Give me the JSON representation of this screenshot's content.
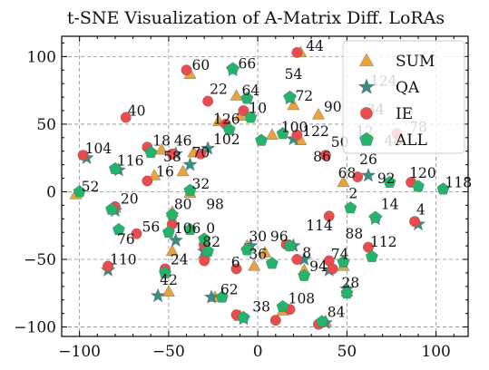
{
  "chart_data": {
    "type": "scatter",
    "title": "t-SNE Visualization of A-Matrix Diff. LoRAs",
    "xlim": [
      -110,
      118
    ],
    "ylim": [
      -107,
      115
    ],
    "xticks": [
      -100,
      -50,
      0,
      50,
      100
    ],
    "yticks": [
      -100,
      -50,
      0,
      50,
      100
    ],
    "xtick_labels": [
      "−100",
      "−50",
      "0",
      "50",
      "100"
    ],
    "ytick_labels": [
      "−100",
      "−50",
      "0",
      "50",
      "100"
    ],
    "grid": true,
    "legend_position": "top-right",
    "series": [
      {
        "name": "SUM",
        "marker": "triangle",
        "color": "#E8A33A",
        "points": [
          [
            24,
            103
          ],
          [
            -38,
            87
          ],
          [
            -12,
            71
          ],
          [
            20,
            64
          ],
          [
            34,
            57
          ],
          [
            -10,
            56
          ],
          [
            -22,
            52
          ],
          [
            8,
            42
          ],
          [
            24,
            38
          ],
          [
            -54,
            31
          ],
          [
            -36,
            29
          ],
          [
            -42,
            15
          ],
          [
            -58,
            12
          ],
          [
            48,
            7
          ],
          [
            -38,
            -1
          ],
          [
            -48,
            -15
          ],
          [
            -30,
            -46
          ],
          [
            -48,
            -44
          ],
          [
            -6,
            -40
          ],
          [
            -2,
            -55
          ],
          [
            26,
            -58
          ],
          [
            48,
            -55
          ],
          [
            -50,
            -74
          ],
          [
            -24,
            -78
          ],
          [
            50,
            -74
          ],
          [
            -10,
            -92
          ],
          [
            38,
            -96
          ],
          [
            14,
            -88
          ],
          [
            -102,
            -2
          ],
          [
            -80,
            -12
          ],
          [
            4,
            -45
          ],
          [
            -30,
            -36
          ]
        ]
      },
      {
        "name": "QA",
        "marker": "star",
        "color": "#3A8C86",
        "points": [
          [
            -14,
            90
          ],
          [
            18,
            69
          ],
          [
            -28,
            32
          ],
          [
            -46,
            28
          ],
          [
            20,
            39
          ],
          [
            -78,
            16
          ],
          [
            -96,
            25
          ],
          [
            -38,
            20
          ],
          [
            -80,
            -14
          ],
          [
            -46,
            -36
          ],
          [
            -4,
            -40
          ],
          [
            20,
            -40
          ],
          [
            -84,
            -58
          ],
          [
            26,
            -50
          ],
          [
            -56,
            -77
          ],
          [
            -26,
            -78
          ],
          [
            -8,
            -94
          ],
          [
            38,
            -97
          ],
          [
            50,
            -72
          ],
          [
            66,
            -20
          ],
          [
            90,
            -24
          ],
          [
            40,
            -58
          ],
          [
            62,
            12
          ],
          [
            -30,
            -44
          ]
        ]
      },
      {
        "name": "IE",
        "marker": "circle",
        "color": "#E94B4E",
        "points": [
          [
            -40,
            90
          ],
          [
            22,
            103
          ],
          [
            -28,
            67
          ],
          [
            -74,
            55
          ],
          [
            -18,
            50
          ],
          [
            -8,
            60
          ],
          [
            22,
            42
          ],
          [
            -62,
            33
          ],
          [
            -98,
            27
          ],
          [
            -48,
            28
          ],
          [
            -32,
            28
          ],
          [
            -62,
            8
          ],
          [
            -80,
            -11
          ],
          [
            -68,
            -31
          ],
          [
            -48,
            -24
          ],
          [
            -84,
            -55
          ],
          [
            -52,
            -57
          ],
          [
            -30,
            -40
          ],
          [
            -12,
            -57
          ],
          [
            16,
            -39
          ],
          [
            22,
            -50
          ],
          [
            40,
            -51
          ],
          [
            40,
            -18
          ],
          [
            62,
            -41
          ],
          [
            88,
            -22
          ],
          [
            18,
            -87
          ],
          [
            34,
            -98
          ],
          [
            -12,
            -91
          ],
          [
            38,
            27
          ],
          [
            56,
            11
          ],
          [
            86,
            7
          ],
          [
            104,
            2
          ],
          [
            42,
            -57
          ],
          [
            -30,
            -51
          ],
          [
            60,
            59
          ],
          [
            78,
            43
          ],
          [
            10,
            -95
          ]
        ]
      },
      {
        "name": "ALL",
        "marker": "pentagon",
        "color": "#23B36A",
        "points": [
          [
            -14,
            91
          ],
          [
            -6,
            69
          ],
          [
            18,
            70
          ],
          [
            -4,
            55
          ],
          [
            -16,
            46
          ],
          [
            14,
            43
          ],
          [
            2,
            38
          ],
          [
            -60,
            29
          ],
          [
            -80,
            17
          ],
          [
            -100,
            0
          ],
          [
            -38,
            1
          ],
          [
            -48,
            -17
          ],
          [
            -78,
            -28
          ],
          [
            -50,
            -30
          ],
          [
            -38,
            -28
          ],
          [
            -28,
            -44
          ],
          [
            -6,
            -43
          ],
          [
            18,
            -40
          ],
          [
            8,
            -53
          ],
          [
            26,
            -62
          ],
          [
            48,
            -52
          ],
          [
            64,
            -48
          ],
          [
            52,
            -12
          ],
          [
            66,
            -19
          ],
          [
            74,
            7
          ],
          [
            90,
            4
          ],
          [
            104,
            2
          ],
          [
            -52,
            -60
          ],
          [
            -20,
            -78
          ],
          [
            14,
            -85
          ],
          [
            -8,
            -93
          ],
          [
            36,
            -96
          ],
          [
            50,
            -75
          ],
          [
            -82,
            -13
          ],
          [
            -30,
            -35
          ]
        ]
      }
    ],
    "annotations": [
      {
        "text": "44",
        "x": 26,
        "y": 103
      },
      {
        "text": "60",
        "x": -38,
        "y": 89
      },
      {
        "text": "66",
        "x": -12,
        "y": 90
      },
      {
        "text": "54",
        "x": 14,
        "y": 82
      },
      {
        "text": "124",
        "x": 62,
        "y": 77
      },
      {
        "text": "22",
        "x": -28,
        "y": 71
      },
      {
        "text": "64",
        "x": -10,
        "y": 70
      },
      {
        "text": "72",
        "x": 20,
        "y": 66
      },
      {
        "text": "90",
        "x": 36,
        "y": 58
      },
      {
        "text": "34",
        "x": 60,
        "y": 56
      },
      {
        "text": "40",
        "x": -74,
        "y": 55
      },
      {
        "text": "10",
        "x": -6,
        "y": 57
      },
      {
        "text": "126",
        "x": -26,
        "y": 49
      },
      {
        "text": "100",
        "x": 12,
        "y": 43
      },
      {
        "text": "122",
        "x": 24,
        "y": 40
      },
      {
        "text": "12",
        "x": 54,
        "y": 40
      },
      {
        "text": "78",
        "x": 84,
        "y": 43
      },
      {
        "text": "18",
        "x": -60,
        "y": 33
      },
      {
        "text": "46",
        "x": -48,
        "y": 33
      },
      {
        "text": "102",
        "x": -26,
        "y": 34
      },
      {
        "text": "104",
        "x": -98,
        "y": 27
      },
      {
        "text": "50",
        "x": 40,
        "y": 32
      },
      {
        "text": "48",
        "x": 70,
        "y": 33
      },
      {
        "text": "70",
        "x": -38,
        "y": 24
      },
      {
        "text": "58",
        "x": -54,
        "y": 21
      },
      {
        "text": "116",
        "x": -80,
        "y": 18
      },
      {
        "text": "86",
        "x": 30,
        "y": 21
      },
      {
        "text": "26",
        "x": 56,
        "y": 19
      },
      {
        "text": "16",
        "x": -58,
        "y": 10
      },
      {
        "text": "68",
        "x": 44,
        "y": 9
      },
      {
        "text": "92",
        "x": 66,
        "y": 5
      },
      {
        "text": "120",
        "x": 84,
        "y": 9
      },
      {
        "text": "118",
        "x": 104,
        "y": 2
      },
      {
        "text": "52",
        "x": -100,
        "y": -1
      },
      {
        "text": "32",
        "x": -38,
        "y": 1
      },
      {
        "text": "2",
        "x": 50,
        "y": -6
      },
      {
        "text": "20",
        "x": -78,
        "y": -10
      },
      {
        "text": "80",
        "x": -48,
        "y": -14
      },
      {
        "text": "98",
        "x": -30,
        "y": -14
      },
      {
        "text": "14",
        "x": 68,
        "y": -14
      },
      {
        "text": "4",
        "x": 88,
        "y": -18
      },
      {
        "text": "56",
        "x": -66,
        "y": -31
      },
      {
        "text": "106",
        "x": -48,
        "y": -32
      },
      {
        "text": "0",
        "x": -30,
        "y": -32
      },
      {
        "text": "114",
        "x": 26,
        "y": -30
      },
      {
        "text": "76",
        "x": -80,
        "y": -40
      },
      {
        "text": "30",
        "x": -6,
        "y": -38
      },
      {
        "text": "96",
        "x": 6,
        "y": -38
      },
      {
        "text": "88",
        "x": 48,
        "y": -36
      },
      {
        "text": "82",
        "x": -32,
        "y": -42
      },
      {
        "text": "112",
        "x": 62,
        "y": -42
      },
      {
        "text": "36",
        "x": -6,
        "y": -51
      },
      {
        "text": "8",
        "x": 24,
        "y": -50
      },
      {
        "text": "74",
        "x": 40,
        "y": -51
      },
      {
        "text": "110",
        "x": -84,
        "y": -55
      },
      {
        "text": "24",
        "x": -50,
        "y": -55
      },
      {
        "text": "6",
        "x": -16,
        "y": -57
      },
      {
        "text": "94",
        "x": 28,
        "y": -60
      },
      {
        "text": "42",
        "x": -56,
        "y": -70
      },
      {
        "text": "28",
        "x": 46,
        "y": -72
      },
      {
        "text": "62",
        "x": -22,
        "y": -77
      },
      {
        "text": "108",
        "x": 16,
        "y": -84
      },
      {
        "text": "38",
        "x": -4,
        "y": -90
      },
      {
        "text": "84",
        "x": 38,
        "y": -94
      }
    ]
  }
}
